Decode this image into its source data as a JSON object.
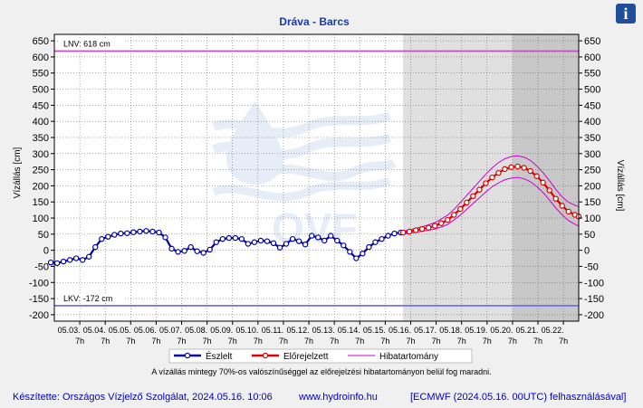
{
  "title": "Dráva - Barcs",
  "info_button": "i",
  "colors": {
    "observed": "#0000aa",
    "forecast": "#dd0000",
    "error_band": "#cc00cc",
    "lnv_line": "#c050c0",
    "lkv_line": "#6f6fff",
    "title": "#1a3aa8",
    "footer": "#0000cc",
    "plot_bg": "#ffffff",
    "forecast_bg": "#e0e0e0",
    "late_forecast_bg": "#c8c8c8"
  },
  "chart_data": {
    "type": "line",
    "title": "Dráva - Barcs",
    "ylabel_left": "Vízállás [cm]",
    "ylabel_right": "Vízállás [cm]",
    "ylim": [
      -220,
      670
    ],
    "yticks": [
      650,
      600,
      550,
      500,
      450,
      400,
      350,
      300,
      250,
      200,
      150,
      100,
      50,
      0,
      -50,
      -100,
      -150,
      -200
    ],
    "xlim": [
      0,
      20.6
    ],
    "x_unit": "days since 05.03. 7h",
    "x_tick_labels": [
      {
        "date": "05.03.",
        "hour": "7h"
      },
      {
        "date": "05.04.",
        "hour": "7h"
      },
      {
        "date": "05.05.",
        "hour": "7h"
      },
      {
        "date": "05.06.",
        "hour": "7h"
      },
      {
        "date": "05.07.",
        "hour": "7h"
      },
      {
        "date": "05.08.",
        "hour": "7h"
      },
      {
        "date": "05.09.",
        "hour": "7h"
      },
      {
        "date": "05.10.",
        "hour": "7h"
      },
      {
        "date": "05.11.",
        "hour": "7h"
      },
      {
        "date": "05.12.",
        "hour": "7h"
      },
      {
        "date": "05.13.",
        "hour": "7h"
      },
      {
        "date": "05.14.",
        "hour": "7h"
      },
      {
        "date": "05.15.",
        "hour": "7h"
      },
      {
        "date": "05.16.",
        "hour": "7h"
      },
      {
        "date": "05.17.",
        "hour": "7h"
      },
      {
        "date": "05.18.",
        "hour": "7h"
      },
      {
        "date": "05.19.",
        "hour": "7h"
      },
      {
        "date": "05.20.",
        "hour": "7h"
      },
      {
        "date": "05.21.",
        "hour": "7h"
      },
      {
        "date": "05.22.",
        "hour": "7h"
      }
    ],
    "forecast_start_x": 13.7,
    "late_forecast_start_x": 18.0,
    "reference_lines": [
      {
        "label": "LNV: 618 cm",
        "value": 618
      },
      {
        "label": "LKV: -172 cm",
        "value": -172
      }
    ],
    "series": [
      {
        "name": "Észlelt",
        "x": [
          -0.14,
          0.11,
          0.36,
          0.61,
          0.86,
          1.11,
          1.36,
          1.61,
          1.86,
          2.11,
          2.36,
          2.61,
          2.86,
          3.11,
          3.36,
          3.61,
          3.86,
          4.11,
          4.36,
          4.61,
          4.86,
          5.11,
          5.36,
          5.61,
          5.86,
          6.11,
          6.36,
          6.61,
          6.86,
          7.11,
          7.36,
          7.61,
          7.86,
          8.11,
          8.36,
          8.61,
          8.86,
          9.11,
          9.36,
          9.61,
          9.86,
          10.11,
          10.36,
          10.61,
          10.86,
          11.11,
          11.36,
          11.61,
          11.86,
          12.11,
          12.36,
          12.61,
          12.86,
          13.11,
          13.36,
          13.61
        ],
        "y": [
          -38,
          -40,
          -35,
          -30,
          -25,
          -30,
          -20,
          10,
          35,
          42,
          48,
          52,
          53,
          56,
          58,
          60,
          58,
          55,
          40,
          5,
          -5,
          -2,
          10,
          -3,
          -8,
          2,
          25,
          35,
          38,
          38,
          35,
          20,
          25,
          30,
          28,
          22,
          8,
          20,
          35,
          28,
          18,
          45,
          40,
          30,
          45,
          30,
          15,
          -5,
          -25,
          -10,
          10,
          25,
          35,
          45,
          52,
          55
        ]
      },
      {
        "name": "Előrejelzett",
        "x": [
          13.7,
          13.95,
          14.2,
          14.45,
          14.7,
          14.95,
          15.2,
          15.45,
          15.7,
          15.95,
          16.2,
          16.45,
          16.7,
          16.95,
          17.2,
          17.45,
          17.7,
          17.95,
          18.2,
          18.45,
          18.7,
          18.95,
          19.2,
          19.45,
          19.7,
          19.95,
          20.2,
          20.45,
          20.6
        ],
        "y": [
          55,
          58,
          62,
          66,
          70,
          76,
          84,
          94,
          110,
          128,
          148,
          168,
          188,
          208,
          226,
          240,
          252,
          258,
          260,
          256,
          246,
          230,
          210,
          186,
          160,
          138,
          120,
          110,
          105
        ]
      },
      {
        "name": "Hibatartomány",
        "upper": [
          60,
          63,
          68,
          73,
          79,
          86,
          97,
          109,
          127,
          148,
          170,
          192,
          214,
          236,
          256,
          272,
          284,
          291,
          293,
          289,
          279,
          262,
          241,
          216,
          189,
          166,
          149,
          140,
          135
        ],
        "lower": [
          50,
          53,
          56,
          59,
          62,
          66,
          72,
          80,
          94,
          109,
          127,
          145,
          163,
          181,
          197,
          209,
          219,
          224,
          226,
          222,
          213,
          198,
          179,
          156,
          131,
          110,
          92,
          81,
          75
        ]
      }
    ],
    "legend": {
      "placement": "bottom",
      "entries": [
        "Észlelt",
        "Előrejelzett",
        "Hibatartomány"
      ]
    }
  },
  "note": "A vízállás mintegy 70%-os valószínűséggel az előrejelzési hibatartományon belül fog maradni.",
  "footer": {
    "author": "Készítette: Országos Vízjelző Szolgálat, 2024.05.16. 10:06",
    "website": "www.hydroinfo.hu",
    "model": "[ECMWF (2024.05.16. 00UTC) felhasználásával]"
  }
}
